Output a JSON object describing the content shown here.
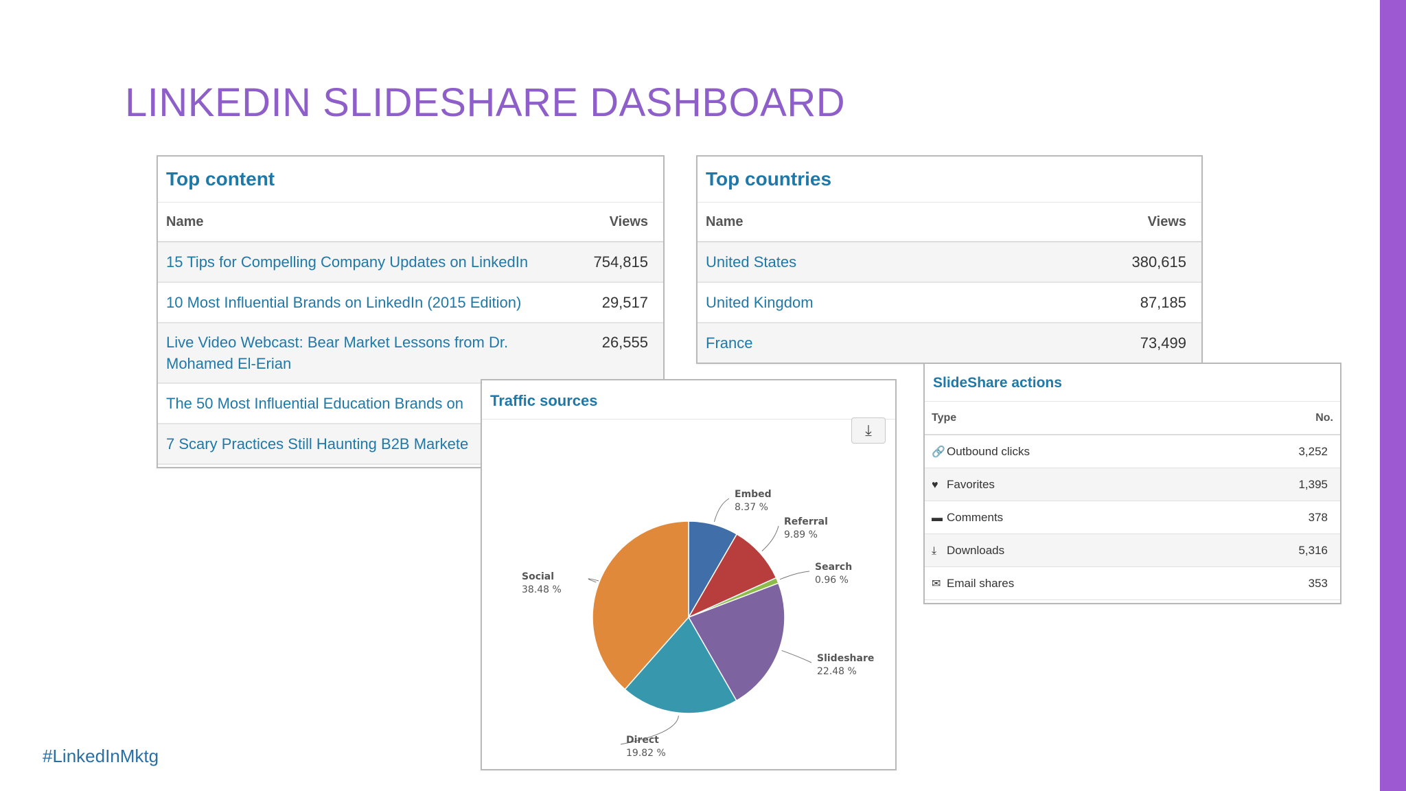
{
  "slide": {
    "title": "LINKEDIN SLIDESHARE DASHBOARD",
    "hashtag": "#LinkedInMktg",
    "accent_color": "#9c59d1"
  },
  "top_content": {
    "title": "Top content",
    "col_name": "Name",
    "col_views": "Views",
    "rows": [
      {
        "name": "15 Tips for Compelling Company Updates on LinkedIn",
        "views": "754,815"
      },
      {
        "name": "10 Most Influential Brands on LinkedIn (2015 Edition)",
        "views": "29,517"
      },
      {
        "name": "Live Video Webcast: Bear Market Lessons from Dr. Mohamed El-Erian",
        "views": "26,555"
      },
      {
        "name": "The 50 Most Influential Education Brands on",
        "views": ""
      },
      {
        "name": "7 Scary Practices Still Haunting B2B Markete",
        "views": ""
      }
    ]
  },
  "top_countries": {
    "title": "Top countries",
    "col_name": "Name",
    "col_views": "Views",
    "rows": [
      {
        "name": "United States",
        "views": "380,615"
      },
      {
        "name": "United Kingdom",
        "views": "87,185"
      },
      {
        "name": "France",
        "views": "73,499"
      }
    ]
  },
  "traffic_sources": {
    "title": "Traffic sources",
    "download_icon": "download-icon"
  },
  "chart_data": {
    "type": "pie",
    "title": "Traffic sources",
    "slices": [
      {
        "label": "Embed",
        "value": 8.37,
        "display": "8.37 %",
        "color": "#3f6ea8"
      },
      {
        "label": "Referral",
        "value": 9.89,
        "display": "9.89 %",
        "color": "#b73e3c"
      },
      {
        "label": "Search",
        "value": 0.96,
        "display": "0.96 %",
        "color": "#8dbb4a"
      },
      {
        "label": "Slideshare",
        "value": 22.48,
        "display": "22.48 %",
        "color": "#7d63a0"
      },
      {
        "label": "Direct",
        "value": 19.82,
        "display": "19.82 %",
        "color": "#3797ad"
      },
      {
        "label": "Social",
        "value": 38.48,
        "display": "38.48 %",
        "color": "#e0893a"
      }
    ]
  },
  "slideshare_actions": {
    "title": "SlideShare actions",
    "col_type": "Type",
    "col_no": "No.",
    "rows": [
      {
        "icon": "link-icon",
        "glyph": "🔗",
        "label": "Outbound clicks",
        "value": "3,252"
      },
      {
        "icon": "heart-icon",
        "glyph": "♥",
        "label": "Favorites",
        "value": "1,395"
      },
      {
        "icon": "comment-icon",
        "glyph": "▬",
        "label": "Comments",
        "value": "378"
      },
      {
        "icon": "download-icon",
        "glyph": "⤓",
        "label": "Downloads",
        "value": "5,316"
      },
      {
        "icon": "envelope-icon",
        "glyph": "✉",
        "label": "Email shares",
        "value": "353"
      }
    ]
  }
}
